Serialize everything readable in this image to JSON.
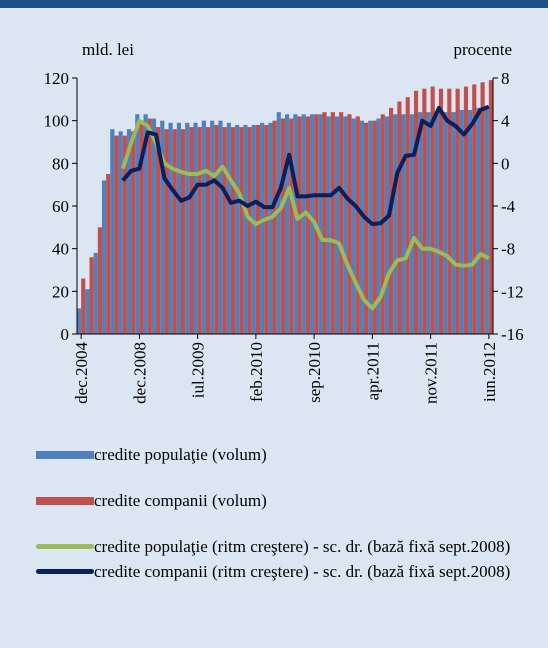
{
  "chart_data": {
    "type": "bar",
    "y_label": "mld. lei",
    "y2_label": "procente",
    "categories": [
      "dec.2004",
      null,
      null,
      null,
      null,
      null,
      null,
      "dec.2008",
      null,
      null,
      null,
      null,
      null,
      null,
      "iul.2009",
      null,
      null,
      null,
      null,
      null,
      null,
      "feb.2010",
      null,
      null,
      null,
      null,
      null,
      null,
      "sep.2010",
      null,
      null,
      null,
      null,
      null,
      null,
      "apr.2011",
      null,
      null,
      null,
      null,
      null,
      null,
      "nov.2011",
      null,
      null,
      null,
      null,
      null,
      null,
      "iun.2012"
    ],
    "ylim": [
      0,
      120
    ],
    "yticks": [
      0,
      20,
      40,
      60,
      80,
      100,
      120
    ],
    "y2lim": [
      -16,
      8
    ],
    "y2ticks": [
      -16,
      -12,
      -8,
      -4,
      0,
      4,
      8
    ],
    "grid": true,
    "series": [
      {
        "name": "credite populaţie (volum)",
        "type": "bar",
        "color": "#4f81bd",
        "values": [
          12,
          21,
          38,
          72,
          96,
          95,
          96,
          103,
          103,
          101,
          100,
          99,
          99,
          99,
          99,
          100,
          100,
          100,
          99,
          98,
          98,
          98,
          99,
          99,
          104,
          103,
          103,
          103,
          103,
          103,
          102,
          102,
          102,
          101,
          100,
          100,
          101,
          102,
          103,
          103,
          103,
          104,
          104,
          104,
          104,
          104,
          105,
          105,
          106,
          107
        ]
      },
      {
        "name": "credite companii (volum)",
        "type": "bar",
        "color": "#c0504d",
        "values": [
          26,
          36,
          50,
          75,
          93,
          93,
          95,
          100,
          101,
          97,
          96,
          96,
          96,
          97,
          97,
          97,
          98,
          97,
          97,
          97,
          97,
          98,
          98,
          100,
          101,
          101,
          102,
          102,
          103,
          104,
          104,
          104,
          103,
          102,
          99,
          100,
          103,
          106,
          109,
          111,
          114,
          115,
          116,
          115,
          115,
          115,
          116,
          117,
          118,
          119
        ]
      },
      {
        "name": "credite populaţie (ritm creştere) - sc. dr. (bază fixă sept.2008)",
        "type": "line",
        "axis": "y2",
        "color": "#9bbb59",
        "values": [
          null,
          null,
          null,
          null,
          null,
          -0.5,
          1.9,
          4,
          3.5,
          1.9,
          0,
          -0.5,
          -0.8,
          -1,
          -1,
          -0.7,
          -1.2,
          -0.3,
          -1.6,
          -2.8,
          -5,
          -5.7,
          -5.3,
          -5,
          -4.2,
          -2.3,
          -5.2,
          -4.6,
          -5.5,
          -7.2,
          -7.2,
          -7.5,
          -9.5,
          -11.2,
          -12.8,
          -13.6,
          -12.5,
          -10.3,
          -9.1,
          -8.9,
          -7,
          -8,
          -8,
          -8.3,
          -8.7,
          -9.5,
          -9.6,
          -9.5,
          -8.5,
          -8.9
        ]
      },
      {
        "name": "credite companii (ritm creştere) - sc. dr. (bază fixă sept.2008)",
        "type": "line",
        "axis": "y2",
        "color": "#0a1f5c",
        "values": [
          null,
          null,
          null,
          null,
          null,
          -1.6,
          -0.7,
          -0.5,
          2.9,
          2.7,
          -1.4,
          -2.5,
          -3.5,
          -3.2,
          -2,
          -2,
          -1.6,
          -2.3,
          -3.7,
          -3.5,
          -4,
          -3.6,
          -4.1,
          -4.1,
          -2.3,
          0.8,
          -3.1,
          -3.1,
          -3,
          -3,
          -3,
          -2.3,
          -3.3,
          -4,
          -5,
          -5.7,
          -5.6,
          -4.9,
          -0.9,
          0.7,
          0.8,
          4,
          3.5,
          5.2,
          4,
          3.5,
          2.7,
          3.7,
          5,
          5.3
        ]
      }
    ]
  }
}
